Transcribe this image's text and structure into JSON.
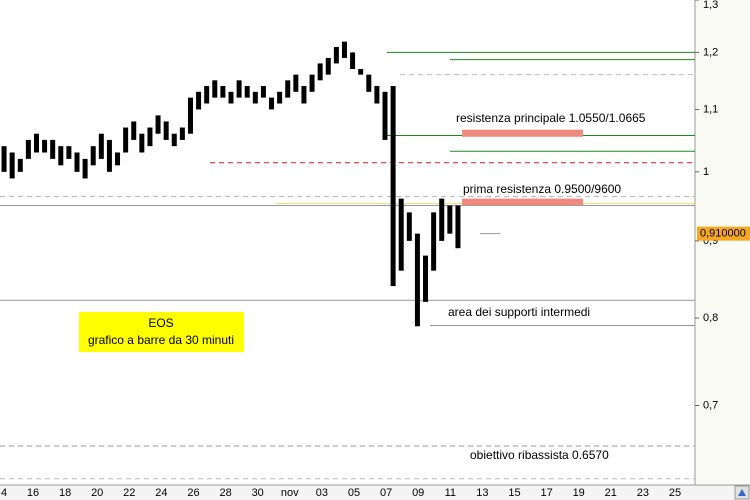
{
  "chart_data": {
    "type": "ohlc",
    "title": "EOS",
    "subtitle": "grafico a barre da 30 minuti",
    "log_scale": true,
    "color": "#000000",
    "categories": [
      "4",
      "16",
      "18",
      "20",
      "22",
      "24",
      "26",
      "28",
      "30",
      "nov",
      "03",
      "05",
      "07",
      "09",
      "11",
      "13",
      "15",
      "17",
      "19",
      "21",
      "23",
      "25"
    ],
    "bars": {
      "high": [
        1.04,
        1.03,
        1.02,
        1.05,
        1.06,
        1.05,
        1.05,
        1.04,
        1.04,
        1.03,
        1.02,
        1.04,
        1.06,
        1.05,
        1.03,
        1.07,
        1.08,
        1.06,
        1.07,
        1.09,
        1.08,
        1.06,
        1.07,
        1.12,
        1.13,
        1.14,
        1.15,
        1.14,
        1.13,
        1.15,
        1.14,
        1.13,
        1.14,
        1.12,
        1.13,
        1.15,
        1.16,
        1.14,
        1.16,
        1.18,
        1.19,
        1.21,
        1.22,
        1.2,
        1.17,
        1.16,
        1.14,
        1.13,
        1.14,
        0.96,
        0.94,
        0.91,
        0.88,
        0.94,
        0.96,
        0.95,
        0.95
      ],
      "low": [
        1.0,
        0.99,
        1.0,
        1.02,
        1.03,
        1.03,
        1.02,
        1.01,
        1.02,
        1.0,
        0.99,
        1.01,
        1.02,
        1.0,
        1.01,
        1.03,
        1.05,
        1.03,
        1.04,
        1.06,
        1.05,
        1.04,
        1.05,
        1.06,
        1.1,
        1.11,
        1.12,
        1.12,
        1.11,
        1.12,
        1.12,
        1.11,
        1.12,
        1.1,
        1.11,
        1.12,
        1.13,
        1.11,
        1.13,
        1.15,
        1.16,
        1.18,
        1.19,
        1.17,
        1.16,
        1.13,
        1.11,
        1.05,
        0.84,
        0.86,
        0.9,
        0.79,
        0.82,
        0.86,
        0.9,
        0.91,
        0.89
      ]
    },
    "ylim": [
      0.62,
      1.3
    ],
    "yticks": [
      {
        "value": 1.3,
        "label": "1,3"
      },
      {
        "value": 1.2,
        "label": "1,2"
      },
      {
        "value": 1.1,
        "label": "1,1"
      },
      1,
      {
        "value": 0.9,
        "label": "0,9"
      },
      {
        "value": 0.8,
        "label": "0,8"
      },
      {
        "value": 0.7,
        "label": "0,7"
      }
    ],
    "last_price": {
      "value": 0.91,
      "label": "0,910000",
      "color": "#f5a623"
    },
    "levels": [
      {
        "value": 1.2,
        "color": "#1a8c1a",
        "style": "solid"
      },
      {
        "value": 1.187,
        "color": "#1a8c1a",
        "style": "solid"
      },
      {
        "value": 1.16,
        "color": "#bbbbbb",
        "style": "dashed"
      },
      {
        "value": 1.057,
        "color": "#1a8c1a",
        "style": "solid"
      },
      {
        "value": 1.032,
        "color": "#1a8c1a",
        "style": "solid"
      },
      {
        "value": 1.014,
        "color": "#d02020",
        "style": "dashed"
      },
      {
        "value": 0.963,
        "color": "#bbbbbb",
        "style": "dashed"
      },
      {
        "value": 0.953,
        "color": "#e8e070",
        "style": "solid"
      },
      {
        "value": 0.95,
        "color": "#999999",
        "style": "solid"
      },
      {
        "value": 0.822,
        "color": "#999999",
        "style": "solid"
      },
      {
        "value": 0.791,
        "color": "#999999",
        "style": "solid"
      },
      {
        "value": 0.658,
        "color": "#999999",
        "style": "dashed"
      },
      {
        "value": 0.626,
        "color": "#bbbbbb",
        "style": "dashed"
      }
    ],
    "zones": [
      {
        "low": 1.055,
        "high": 1.0665,
        "color": "#f08a80"
      },
      {
        "low": 0.95,
        "high": 0.96,
        "color": "#f08a80"
      }
    ],
    "annotations": [
      "resistenza principale 1.0550/1.0665",
      "prima resistenza 0.9500/9600",
      "area dei supporti intermedi",
      "obiettivo ribassista 0.6570"
    ]
  }
}
